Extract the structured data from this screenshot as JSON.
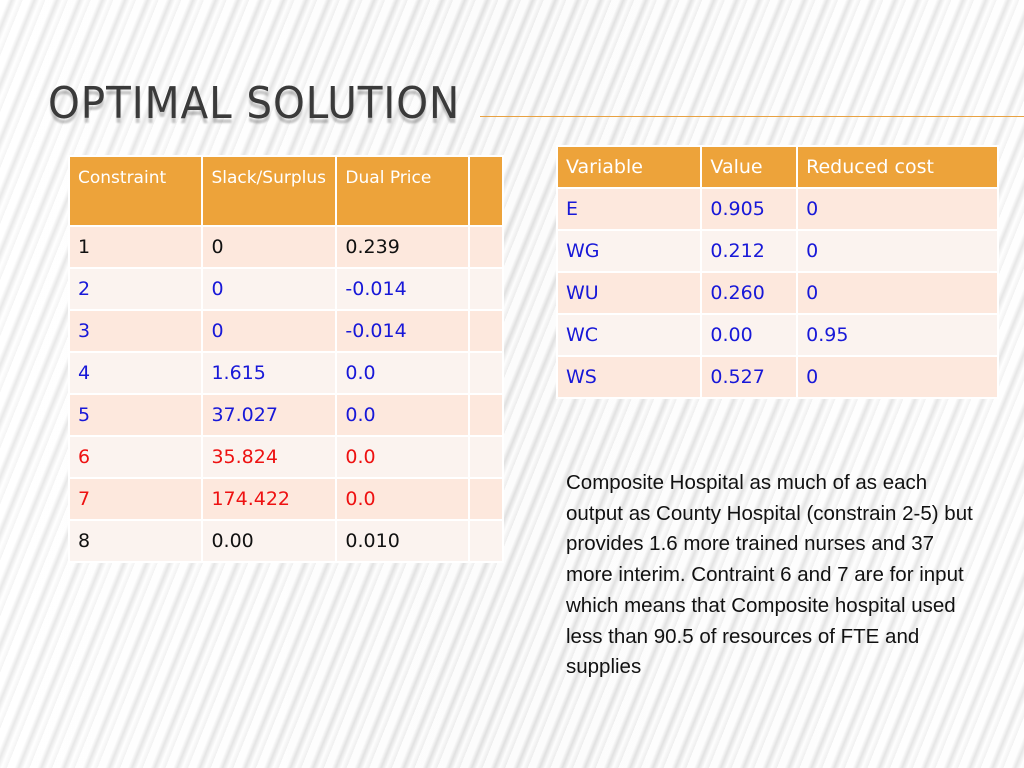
{
  "title": "OPTIMAL SOLUTION",
  "constraint_table": {
    "headers": [
      "Constraint",
      "Slack/Surplus",
      "Dual Price",
      ""
    ],
    "rows": [
      [
        "1",
        "0",
        "0.239",
        ""
      ],
      [
        "2",
        "0",
        "-0.014",
        ""
      ],
      [
        "3",
        "0",
        "-0.014",
        ""
      ],
      [
        "4",
        "1.615",
        "0.0",
        ""
      ],
      [
        "5",
        "37.027",
        "0.0",
        ""
      ],
      [
        "6",
        "35.824",
        "0.0",
        ""
      ],
      [
        "7",
        "174.422",
        "0.0",
        ""
      ],
      [
        "8",
        "0.00",
        "0.010",
        ""
      ]
    ],
    "row_colors": [
      "black",
      "blue",
      "blue",
      "blue",
      "blue",
      "red",
      "red",
      "black"
    ]
  },
  "variable_table": {
    "headers": [
      "Variable",
      "Value",
      "Reduced cost"
    ],
    "rows": [
      [
        "E",
        "0.905",
        "0"
      ],
      [
        "WG",
        "0.212",
        "0"
      ],
      [
        "WU",
        "0.260",
        "0"
      ],
      [
        "WC",
        "0.00",
        "0.95"
      ],
      [
        "WS",
        "0.527",
        "0"
      ]
    ],
    "row_color": "blue"
  },
  "note": "Composite Hospital as much of as each output as County Hospital (constrain 2-5) but provides 1.6 more trained nurses and 37 more interim. Contraint 6 and 7 are for input which means that Composite hospital used less than  90.5 of resources of FTE and supplies",
  "colors": {
    "header_orange": "#eda33a",
    "row_odd": "#fde8dd",
    "row_even": "#fbf3ef",
    "blue_text": "#1818d8",
    "red_text": "#ee1111",
    "title_rule": "#e8a243"
  }
}
